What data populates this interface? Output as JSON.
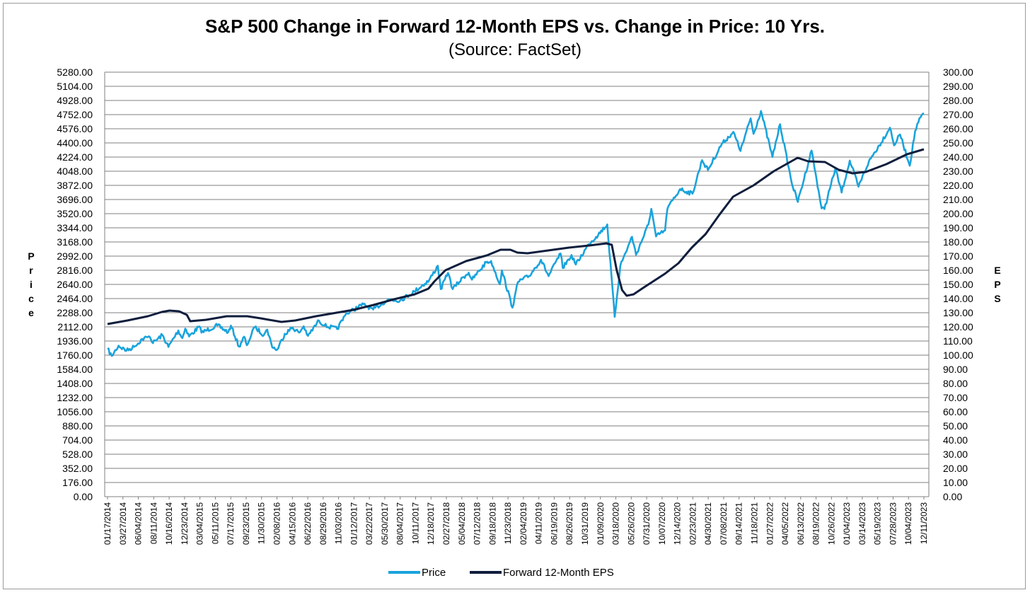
{
  "chart_data": {
    "type": "line",
    "title": "S&P 500 Change in Forward 12-Month EPS vs. Change in Price: 10 Yrs.",
    "subtitle": "(Source: FactSet)",
    "ylabel": "Price",
    "y2label": "EPS",
    "ylim": [
      0,
      5280
    ],
    "y2lim": [
      0,
      300
    ],
    "grid": true,
    "legend_position": "bottom",
    "colors": {
      "Price": "#1aa3dc",
      "Forward 12-Month EPS": "#0f1e3d"
    },
    "y_ticks": [
      "0.00",
      "176.00",
      "352.00",
      "528.00",
      "704.00",
      "880.00",
      "1056.00",
      "1232.00",
      "1408.00",
      "1584.00",
      "1760.00",
      "1936.00",
      "2112.00",
      "2288.00",
      "2464.00",
      "2640.00",
      "2816.00",
      "2992.00",
      "3168.00",
      "3344.00",
      "3520.00",
      "3696.00",
      "3872.00",
      "4048.00",
      "4224.00",
      "4400.00",
      "4576.00",
      "4752.00",
      "4928.00",
      "5104.00",
      "5280.00"
    ],
    "y2_ticks": [
      "0.00",
      "10.00",
      "20.00",
      "30.00",
      "40.00",
      "50.00",
      "60.00",
      "70.00",
      "80.00",
      "90.00",
      "100.00",
      "110.00",
      "120.00",
      "130.00",
      "140.00",
      "150.00",
      "160.00",
      "170.00",
      "180.00",
      "190.00",
      "200.00",
      "210.00",
      "220.00",
      "230.00",
      "240.00",
      "250.00",
      "260.00",
      "270.00",
      "280.00",
      "290.00",
      "300.00"
    ],
    "x_ticks": [
      "01/17/2014",
      "03/27/2014",
      "06/04/2014",
      "08/11/2014",
      "10/16/2014",
      "12/23/2014",
      "03/04/2015",
      "05/11/2015",
      "07/17/2015",
      "09/23/2015",
      "11/30/2015",
      "02/08/2016",
      "04/15/2016",
      "06/22/2016",
      "08/29/2016",
      "11/03/2016",
      "01/12/2017",
      "03/22/2017",
      "05/30/2017",
      "08/04/2017",
      "10/11/2017",
      "12/18/2017",
      "02/27/2018",
      "05/04/2018",
      "07/12/2018",
      "09/18/2018",
      "11/23/2018",
      "02/04/2019",
      "04/11/2019",
      "06/19/2019",
      "08/26/2019",
      "10/31/2019",
      "01/09/2020",
      "03/18/2020",
      "05/26/2020",
      "07/31/2020",
      "10/07/2020",
      "12/14/2020",
      "02/23/2021",
      "04/30/2021",
      "07/08/2021",
      "09/14/2021",
      "11/18/2021",
      "01/27/2022",
      "04/05/2022",
      "06/13/2022",
      "08/19/2022",
      "10/26/2022",
      "01/04/2023",
      "03/14/2023",
      "05/19/2023",
      "07/28/2023",
      "10/04/2023",
      "12/11/2023"
    ],
    "series": [
      {
        "name": "Price",
        "points": [
          [
            "2014-01-17",
            1838
          ],
          [
            "2014-02-05",
            1751
          ],
          [
            "2014-03-07",
            1878
          ],
          [
            "2014-04-11",
            1815
          ],
          [
            "2014-05-20",
            1872
          ],
          [
            "2014-06-20",
            1962
          ],
          [
            "2014-07-24",
            1987
          ],
          [
            "2014-08-07",
            1910
          ],
          [
            "2014-09-18",
            2011
          ],
          [
            "2014-10-15",
            1862
          ],
          [
            "2014-11-28",
            2067
          ],
          [
            "2014-12-16",
            1972
          ],
          [
            "2014-12-29",
            2090
          ],
          [
            "2015-01-15",
            1992
          ],
          [
            "2015-03-02",
            2117
          ],
          [
            "2015-03-11",
            2040
          ],
          [
            "2015-05-21",
            2130
          ],
          [
            "2015-07-08",
            2046
          ],
          [
            "2015-07-20",
            2128
          ],
          [
            "2015-08-25",
            1867
          ],
          [
            "2015-09-17",
            1990
          ],
          [
            "2015-09-29",
            1884
          ],
          [
            "2015-11-03",
            2109
          ],
          [
            "2015-12-14",
            2012
          ],
          [
            "2015-12-29",
            2078
          ],
          [
            "2016-01-20",
            1859
          ],
          [
            "2016-02-11",
            1829
          ],
          [
            "2016-03-16",
            2027
          ],
          [
            "2016-04-20",
            2102
          ],
          [
            "2016-05-19",
            2040
          ],
          [
            "2016-06-08",
            2119
          ],
          [
            "2016-06-27",
            2000
          ],
          [
            "2016-08-15",
            2190
          ],
          [
            "2016-09-09",
            2128
          ],
          [
            "2016-11-04",
            2085
          ],
          [
            "2016-12-13",
            2271
          ],
          [
            "2017-03-01",
            2395
          ],
          [
            "2017-04-13",
            2328
          ],
          [
            "2017-06-19",
            2453
          ],
          [
            "2017-08-10",
            2438
          ],
          [
            "2017-10-13",
            2553
          ],
          [
            "2017-12-18",
            2690
          ],
          [
            "2018-01-26",
            2872
          ],
          [
            "2018-02-08",
            2581
          ],
          [
            "2018-03-12",
            2783
          ],
          [
            "2018-04-02",
            2582
          ],
          [
            "2018-05-21",
            2733
          ],
          [
            "2018-06-12",
            2786
          ],
          [
            "2018-06-27",
            2699
          ],
          [
            "2018-08-29",
            2914
          ],
          [
            "2018-09-20",
            2931
          ],
          [
            "2018-10-29",
            2641
          ],
          [
            "2018-11-07",
            2814
          ],
          [
            "2018-12-24",
            2351
          ],
          [
            "2019-01-18",
            2671
          ],
          [
            "2019-03-08",
            2744
          ],
          [
            "2019-04-30",
            2946
          ],
          [
            "2019-06-03",
            2744
          ],
          [
            "2019-07-26",
            3025
          ],
          [
            "2019-08-05",
            2844
          ],
          [
            "2019-09-13",
            3007
          ],
          [
            "2019-10-02",
            2887
          ],
          [
            "2019-11-29",
            3141
          ],
          [
            "2019-12-31",
            3231
          ],
          [
            "2020-02-19",
            3386
          ],
          [
            "2020-03-23",
            2237
          ],
          [
            "2020-04-17",
            2875
          ],
          [
            "2020-06-08",
            3232
          ],
          [
            "2020-06-26",
            3009
          ],
          [
            "2020-08-20",
            3385
          ],
          [
            "2020-09-02",
            3580
          ],
          [
            "2020-09-23",
            3237
          ],
          [
            "2020-11-02",
            3310
          ],
          [
            "2020-11-13",
            3585
          ],
          [
            "2021-01-08",
            3825
          ],
          [
            "2021-03-04",
            3768
          ],
          [
            "2021-04-16",
            4185
          ],
          [
            "2021-05-12",
            4063
          ],
          [
            "2021-07-12",
            4384
          ],
          [
            "2021-09-02",
            4537
          ],
          [
            "2021-10-04",
            4300
          ],
          [
            "2021-11-18",
            4705
          ],
          [
            "2021-12-01",
            4513
          ],
          [
            "2022-01-03",
            4797
          ],
          [
            "2022-02-23",
            4225
          ],
          [
            "2022-03-29",
            4632
          ],
          [
            "2022-05-20",
            3901
          ],
          [
            "2022-06-16",
            3666
          ],
          [
            "2022-08-16",
            4305
          ],
          [
            "2022-09-30",
            3586
          ],
          [
            "2022-10-12",
            3577
          ],
          [
            "2022-11-30",
            4080
          ],
          [
            "2022-12-28",
            3783
          ],
          [
            "2023-02-02",
            4180
          ],
          [
            "2023-03-13",
            3855
          ],
          [
            "2023-04-28",
            4169
          ],
          [
            "2023-06-13",
            4370
          ],
          [
            "2023-07-31",
            4589
          ],
          [
            "2023-08-18",
            4370
          ],
          [
            "2023-09-14",
            4505
          ],
          [
            "2023-10-27",
            4117
          ],
          [
            "2023-11-20",
            4547
          ],
          [
            "2023-12-14",
            4719
          ],
          [
            "2023-12-29",
            4770
          ]
        ]
      },
      {
        "name": "Forward 12-Month EPS",
        "points": [
          [
            "2014-01-17",
            122.0
          ],
          [
            "2014-04-15",
            124.5
          ],
          [
            "2014-07-15",
            127.5
          ],
          [
            "2014-09-15",
            130.5
          ],
          [
            "2014-10-20",
            131.5
          ],
          [
            "2014-12-01",
            131.0
          ],
          [
            "2015-01-05",
            128.5
          ],
          [
            "2015-01-20",
            124.0
          ],
          [
            "2015-04-01",
            125.0
          ],
          [
            "2015-07-01",
            127.5
          ],
          [
            "2015-10-01",
            127.5
          ],
          [
            "2015-12-01",
            126.0
          ],
          [
            "2016-01-05",
            125.0
          ],
          [
            "2016-03-01",
            123.5
          ],
          [
            "2016-05-01",
            124.5
          ],
          [
            "2016-08-01",
            127.5
          ],
          [
            "2016-11-01",
            130.0
          ],
          [
            "2017-01-15",
            132.0
          ],
          [
            "2017-04-15",
            135.5
          ],
          [
            "2017-07-15",
            139.5
          ],
          [
            "2017-10-15",
            143.0
          ],
          [
            "2017-12-15",
            147.0
          ],
          [
            "2018-01-10",
            152.0
          ],
          [
            "2018-03-01",
            160.0
          ],
          [
            "2018-06-01",
            166.5
          ],
          [
            "2018-09-01",
            170.5
          ],
          [
            "2018-11-01",
            174.5
          ],
          [
            "2018-12-15",
            174.5
          ],
          [
            "2019-01-15",
            172.5
          ],
          [
            "2019-03-01",
            172.0
          ],
          [
            "2019-06-01",
            174.0
          ],
          [
            "2019-09-01",
            176.0
          ],
          [
            "2019-12-01",
            177.5
          ],
          [
            "2020-02-15",
            179.0
          ],
          [
            "2020-03-10",
            178.0
          ],
          [
            "2020-04-01",
            160.0
          ],
          [
            "2020-04-25",
            146.0
          ],
          [
            "2020-05-15",
            142.0
          ],
          [
            "2020-06-15",
            143.0
          ],
          [
            "2020-08-01",
            148.0
          ],
          [
            "2020-11-01",
            157.5
          ],
          [
            "2021-01-01",
            165.0
          ],
          [
            "2021-03-01",
            176.0
          ],
          [
            "2021-05-01",
            185.5
          ],
          [
            "2021-07-01",
            199.0
          ],
          [
            "2021-09-01",
            212.0
          ],
          [
            "2021-12-01",
            220.0
          ],
          [
            "2022-03-01",
            230.0
          ],
          [
            "2022-06-15",
            239.5
          ],
          [
            "2022-08-01",
            237.0
          ],
          [
            "2022-10-15",
            236.5
          ],
          [
            "2022-12-15",
            231.0
          ],
          [
            "2023-02-15",
            228.5
          ],
          [
            "2023-04-15",
            229.5
          ],
          [
            "2023-07-15",
            235.0
          ],
          [
            "2023-10-15",
            242.0
          ],
          [
            "2023-12-29",
            245.5
          ]
        ]
      }
    ]
  }
}
